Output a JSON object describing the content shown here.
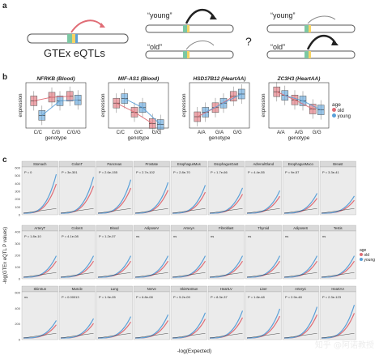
{
  "panel_a": {
    "label": "a",
    "gtex_text": "GTEx eQTLs",
    "young_left": "“young”",
    "old_left": "“old”",
    "young_right": "“young”",
    "old_right": "“old”",
    "question": "?"
  },
  "panel_b": {
    "label": "b",
    "ylabel": "expression",
    "xlabel": "genotype",
    "legend_title": "age",
    "legend_items": [
      {
        "name": "old",
        "color": "#e06c75"
      },
      {
        "name": "young",
        "color": "#5aa0d8"
      }
    ],
    "plots": [
      {
        "title": "NFRKB (Blood)",
        "ticks": [
          "C/C",
          "C/G",
          "C/G/G"
        ]
      },
      {
        "title": "MIF-AS1 (Blood)",
        "ticks": [
          "C/C",
          "G/C",
          "G/G"
        ]
      },
      {
        "title": "HSD17B12 (HeartAA)",
        "ticks": [
          "A/A",
          "G/A",
          "G/G"
        ]
      },
      {
        "title": "ZC3H3 (HeartAA)",
        "ticks": [
          "A/A",
          "A/G",
          "G/G"
        ]
      }
    ]
  },
  "panel_c": {
    "label": "c",
    "ylabel": "-log(GTEx eQTL P values)",
    "xlabel": "-log(Expected)",
    "legend_title": "age",
    "legend_items": [
      {
        "name": "old",
        "color": "#e06c75"
      },
      {
        "name": "young",
        "color": "#5aa0d8"
      }
    ],
    "rows": [
      {
        "yticks": [
          "600",
          "500",
          "400",
          "300",
          "200",
          "100",
          "0"
        ],
        "tiles": [
          {
            "name": "Stomach",
            "p": "P = 0"
          },
          {
            "name": "ColonT",
            "p": "P = 3e-301"
          },
          {
            "name": "Pancreas",
            "p": "P = 2.6e-155"
          },
          {
            "name": "Prostate",
            "p": "P = 2.7e-102"
          },
          {
            "name": "EsophagusMus",
            "p": "P = 2.8e-70"
          },
          {
            "name": "EsophagusGast",
            "p": "P = 1.7e-66"
          },
          {
            "name": "AdrenalGland",
            "p": "P = 4.4e-55"
          },
          {
            "name": "EsophagusMuco",
            "p": "P = 9e-57"
          },
          {
            "name": "Breast",
            "p": "P = 3.3e-41"
          }
        ]
      },
      {
        "yticks": [
          "400",
          "300",
          "200",
          "100",
          "0"
        ],
        "tiles": [
          {
            "name": "ArteryT",
            "p": "P = 1.8e-10"
          },
          {
            "name": "ColonS",
            "p": "P = 4.1e-08"
          },
          {
            "name": "Blood",
            "p": "P = 1.2e-07"
          },
          {
            "name": "AdiposeV",
            "p": "ns"
          },
          {
            "name": "ArteryA",
            "p": "ns"
          },
          {
            "name": "Fibroblast",
            "p": "ns"
          },
          {
            "name": "Thyroid",
            "p": "ns"
          },
          {
            "name": "AdiposeS",
            "p": "ns"
          },
          {
            "name": "Testis",
            "p": "ns"
          }
        ]
      },
      {
        "yticks": [
          "600",
          "400",
          "200",
          "0"
        ],
        "tiles": [
          {
            "name": "SkinSun",
            "p": "ns"
          },
          {
            "name": "Muscle",
            "p": "P = 0.00013"
          },
          {
            "name": "Lung",
            "p": "P = 1.9e-05"
          },
          {
            "name": "Nerve",
            "p": "P = 6.8e-08"
          },
          {
            "name": "SkinNotSun",
            "p": "P = 5.2e-09"
          },
          {
            "name": "HeartLV",
            "p": "P = 8.3e-37"
          },
          {
            "name": "Liver",
            "p": "P = 1.8e-48"
          },
          {
            "name": "ArteryC",
            "p": "P = 2.9e-48"
          },
          {
            "name": "HeartAA",
            "p": "P = 2.3e-123"
          }
        ]
      }
    ]
  },
  "watermark": "知乎 @阿诺教授"
}
